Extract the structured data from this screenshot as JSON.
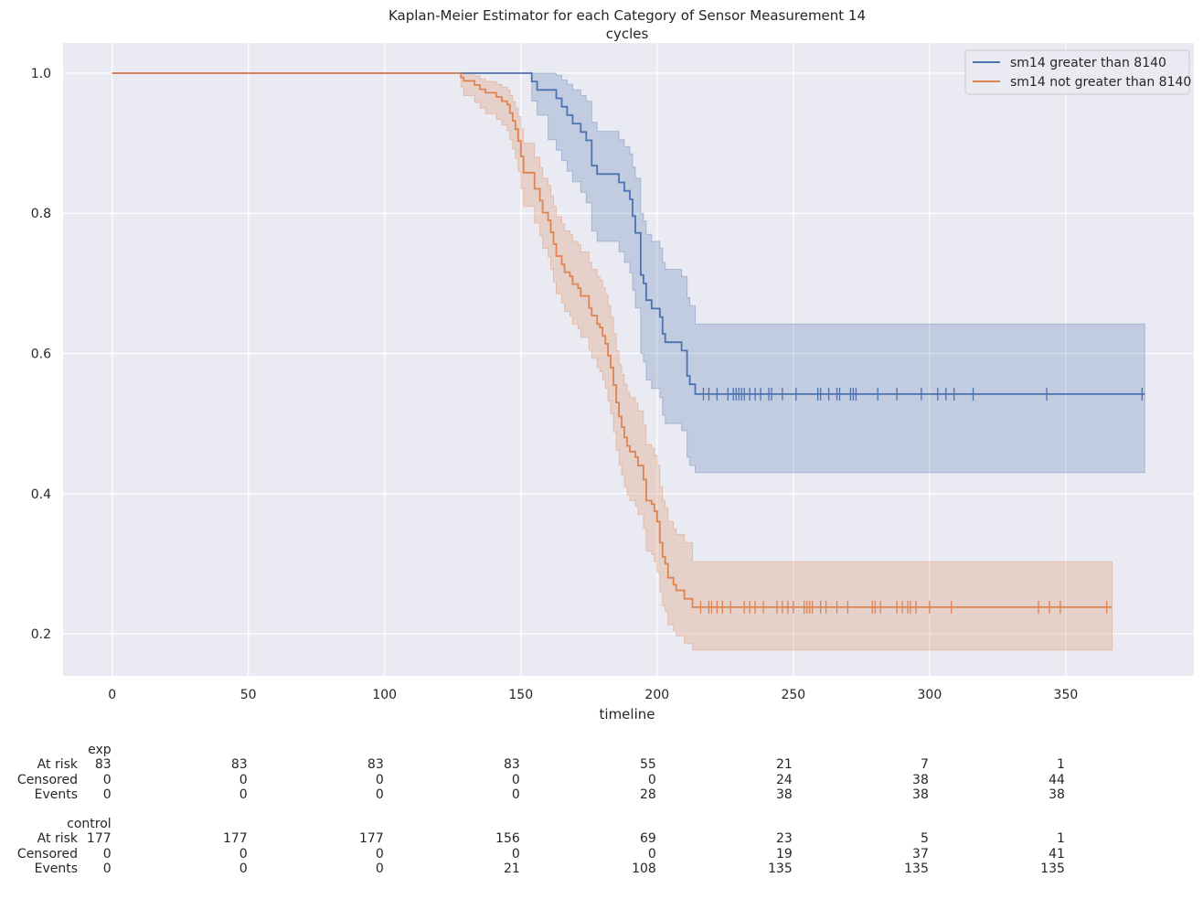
{
  "chart_data": {
    "type": "line",
    "title": "Kaplan-Meier Estimator for each Category of Sensor Measurement 14",
    "subtitle": "cycles",
    "xlabel": "timeline",
    "ylabel": "",
    "xlim": [
      -18,
      397
    ],
    "ylim": [
      0.14,
      1.043
    ],
    "xticks": [
      0,
      50,
      100,
      150,
      200,
      250,
      300,
      350
    ],
    "yticks": [
      0.2,
      0.4,
      0.6,
      0.8,
      1.0
    ],
    "ytick_labels": [
      "0.2",
      "0.4",
      "0.6",
      "0.8",
      "1.0"
    ],
    "grid": true,
    "legend_position": "top-right",
    "series": [
      {
        "name": "sm14 greater than 8140",
        "color": "#4c72b0",
        "steps": [
          [
            0,
            1.0
          ],
          [
            154,
            0.988
          ],
          [
            156,
            0.976
          ],
          [
            163,
            0.964
          ],
          [
            165,
            0.952
          ],
          [
            167,
            0.94
          ],
          [
            169,
            0.928
          ],
          [
            172,
            0.916
          ],
          [
            174,
            0.904
          ],
          [
            176,
            0.868
          ],
          [
            178,
            0.856
          ],
          [
            186,
            0.844
          ],
          [
            188,
            0.832
          ],
          [
            190,
            0.82
          ],
          [
            191,
            0.796
          ],
          [
            192,
            0.772
          ],
          [
            194,
            0.712
          ],
          [
            195,
            0.7
          ],
          [
            196,
            0.676
          ],
          [
            198,
            0.664
          ],
          [
            201,
            0.652
          ],
          [
            202,
            0.628
          ],
          [
            203,
            0.616
          ],
          [
            209,
            0.604
          ],
          [
            211,
            0.568
          ],
          [
            212,
            0.556
          ],
          [
            214,
            0.542
          ],
          [
            379,
            0.542
          ]
        ],
        "ci": [
          [
            0,
            1.0,
            1.0
          ],
          [
            154,
            1.0,
            0.96
          ],
          [
            156,
            1.0,
            0.94
          ],
          [
            160,
            1.0,
            0.905
          ],
          [
            163,
            0.997,
            0.89
          ],
          [
            165,
            0.99,
            0.875
          ],
          [
            167,
            0.984,
            0.86
          ],
          [
            169,
            0.976,
            0.845
          ],
          [
            172,
            0.968,
            0.83
          ],
          [
            174,
            0.96,
            0.815
          ],
          [
            176,
            0.93,
            0.775
          ],
          [
            178,
            0.917,
            0.76
          ],
          [
            186,
            0.905,
            0.745
          ],
          [
            188,
            0.895,
            0.73
          ],
          [
            190,
            0.885,
            0.715
          ],
          [
            191,
            0.866,
            0.69
          ],
          [
            192,
            0.85,
            0.665
          ],
          [
            194,
            0.8,
            0.6
          ],
          [
            195,
            0.789,
            0.588
          ],
          [
            196,
            0.77,
            0.562
          ],
          [
            198,
            0.76,
            0.55
          ],
          [
            201,
            0.75,
            0.537
          ],
          [
            202,
            0.73,
            0.512
          ],
          [
            203,
            0.72,
            0.5
          ],
          [
            209,
            0.71,
            0.49
          ],
          [
            211,
            0.68,
            0.452
          ],
          [
            212,
            0.668,
            0.44
          ],
          [
            214,
            0.642,
            0.43
          ],
          [
            379,
            0.642,
            0.43
          ]
        ],
        "censor_times": [
          217,
          219,
          222,
          226,
          228,
          229,
          230,
          231,
          232,
          234,
          236,
          238,
          241,
          242,
          246,
          251,
          259,
          260,
          263,
          266,
          267,
          271,
          272,
          273,
          281,
          288,
          297,
          303,
          306,
          309,
          316,
          343,
          378
        ]
      },
      {
        "name": "sm14 not greater than 8140",
        "color": "#dd8452",
        "steps": [
          [
            0,
            1.0
          ],
          [
            128,
            0.994
          ],
          [
            129,
            0.989
          ],
          [
            133,
            0.983
          ],
          [
            135,
            0.977
          ],
          [
            137,
            0.972
          ],
          [
            141,
            0.966
          ],
          [
            143,
            0.96
          ],
          [
            145,
            0.955
          ],
          [
            146,
            0.943
          ],
          [
            147,
            0.932
          ],
          [
            148,
            0.92
          ],
          [
            149,
            0.903
          ],
          [
            150,
            0.881
          ],
          [
            151,
            0.858
          ],
          [
            155,
            0.835
          ],
          [
            157,
            0.818
          ],
          [
            158,
            0.801
          ],
          [
            160,
            0.79
          ],
          [
            161,
            0.773
          ],
          [
            162,
            0.756
          ],
          [
            163,
            0.739
          ],
          [
            165,
            0.727
          ],
          [
            166,
            0.716
          ],
          [
            168,
            0.71
          ],
          [
            169,
            0.699
          ],
          [
            171,
            0.693
          ],
          [
            172,
            0.682
          ],
          [
            175,
            0.665
          ],
          [
            176,
            0.654
          ],
          [
            178,
            0.642
          ],
          [
            179,
            0.637
          ],
          [
            180,
            0.625
          ],
          [
            181,
            0.614
          ],
          [
            182,
            0.597
          ],
          [
            183,
            0.58
          ],
          [
            184,
            0.555
          ],
          [
            185,
            0.53
          ],
          [
            186,
            0.51
          ],
          [
            187,
            0.495
          ],
          [
            188,
            0.48
          ],
          [
            189,
            0.468
          ],
          [
            190,
            0.46
          ],
          [
            192,
            0.452
          ],
          [
            193,
            0.44
          ],
          [
            195,
            0.42
          ],
          [
            196,
            0.39
          ],
          [
            198,
            0.385
          ],
          [
            199,
            0.375
          ],
          [
            200,
            0.36
          ],
          [
            201,
            0.33
          ],
          [
            202,
            0.31
          ],
          [
            203,
            0.3
          ],
          [
            204,
            0.28
          ],
          [
            206,
            0.27
          ],
          [
            207,
            0.262
          ],
          [
            210,
            0.25
          ],
          [
            213,
            0.238
          ],
          [
            367,
            0.238
          ]
        ],
        "ci": [
          [
            0,
            1.0,
            1.0
          ],
          [
            128,
            1.0,
            0.98
          ],
          [
            129,
            1.0,
            0.968
          ],
          [
            133,
            0.996,
            0.958
          ],
          [
            135,
            0.992,
            0.95
          ],
          [
            137,
            0.988,
            0.942
          ],
          [
            141,
            0.984,
            0.934
          ],
          [
            143,
            0.98,
            0.926
          ],
          [
            145,
            0.976,
            0.918
          ],
          [
            146,
            0.968,
            0.905
          ],
          [
            147,
            0.959,
            0.892
          ],
          [
            148,
            0.95,
            0.878
          ],
          [
            149,
            0.938,
            0.86
          ],
          [
            150,
            0.92,
            0.835
          ],
          [
            151,
            0.9,
            0.81
          ],
          [
            155,
            0.88,
            0.786
          ],
          [
            157,
            0.865,
            0.768
          ],
          [
            158,
            0.85,
            0.75
          ],
          [
            160,
            0.84,
            0.738
          ],
          [
            161,
            0.825,
            0.72
          ],
          [
            162,
            0.81,
            0.702
          ],
          [
            163,
            0.795,
            0.685
          ],
          [
            165,
            0.785,
            0.672
          ],
          [
            166,
            0.775,
            0.66
          ],
          [
            168,
            0.77,
            0.653
          ],
          [
            169,
            0.76,
            0.642
          ],
          [
            171,
            0.755,
            0.635
          ],
          [
            172,
            0.745,
            0.623
          ],
          [
            175,
            0.73,
            0.605
          ],
          [
            176,
            0.72,
            0.593
          ],
          [
            178,
            0.71,
            0.58
          ],
          [
            179,
            0.705,
            0.574
          ],
          [
            180,
            0.694,
            0.562
          ],
          [
            181,
            0.684,
            0.55
          ],
          [
            182,
            0.668,
            0.532
          ],
          [
            183,
            0.652,
            0.514
          ],
          [
            184,
            0.628,
            0.488
          ],
          [
            185,
            0.604,
            0.462
          ],
          [
            186,
            0.585,
            0.441
          ],
          [
            187,
            0.57,
            0.426
          ],
          [
            188,
            0.556,
            0.41
          ],
          [
            189,
            0.545,
            0.398
          ],
          [
            190,
            0.537,
            0.39
          ],
          [
            192,
            0.53,
            0.382
          ],
          [
            193,
            0.518,
            0.37
          ],
          [
            195,
            0.498,
            0.35
          ],
          [
            196,
            0.47,
            0.318
          ],
          [
            198,
            0.465,
            0.313
          ],
          [
            199,
            0.455,
            0.303
          ],
          [
            200,
            0.44,
            0.288
          ],
          [
            201,
            0.41,
            0.26
          ],
          [
            202,
            0.39,
            0.24
          ],
          [
            203,
            0.38,
            0.232
          ],
          [
            204,
            0.36,
            0.213
          ],
          [
            206,
            0.35,
            0.204
          ],
          [
            207,
            0.342,
            0.197
          ],
          [
            210,
            0.33,
            0.186
          ],
          [
            213,
            0.303,
            0.177
          ],
          [
            367,
            0.303,
            0.177
          ]
        ],
        "censor_times": [
          216,
          219,
          220,
          222,
          224,
          227,
          232,
          234,
          236,
          239,
          244,
          246,
          248,
          250,
          254,
          255,
          256,
          257,
          260,
          262,
          266,
          270,
          279,
          280,
          282,
          288,
          290,
          292,
          293,
          295,
          300,
          308,
          340,
          344,
          348,
          365
        ]
      }
    ]
  },
  "risk_table": {
    "times": [
      0,
      50,
      100,
      150,
      200,
      250,
      300,
      350
    ],
    "groups": [
      {
        "label": "exp",
        "rows": [
          {
            "label": "At risk",
            "values": [
              "83",
              "83",
              "83",
              "83",
              "55",
              "21",
              "7",
              "1"
            ]
          },
          {
            "label": "Censored",
            "values": [
              "0",
              "0",
              "0",
              "0",
              "0",
              "24",
              "38",
              "44"
            ]
          },
          {
            "label": "Events",
            "values": [
              "0",
              "0",
              "0",
              "0",
              "28",
              "38",
              "38",
              "38"
            ]
          }
        ]
      },
      {
        "label": "control",
        "rows": [
          {
            "label": "At risk",
            "values": [
              "177",
              "177",
              "177",
              "156",
              "69",
              "23",
              "5",
              "1"
            ]
          },
          {
            "label": "Censored",
            "values": [
              "0",
              "0",
              "0",
              "0",
              "0",
              "19",
              "37",
              "41"
            ]
          },
          {
            "label": "Events",
            "values": [
              "0",
              "0",
              "0",
              "21",
              "108",
              "135",
              "135",
              "135"
            ]
          }
        ]
      }
    ]
  }
}
